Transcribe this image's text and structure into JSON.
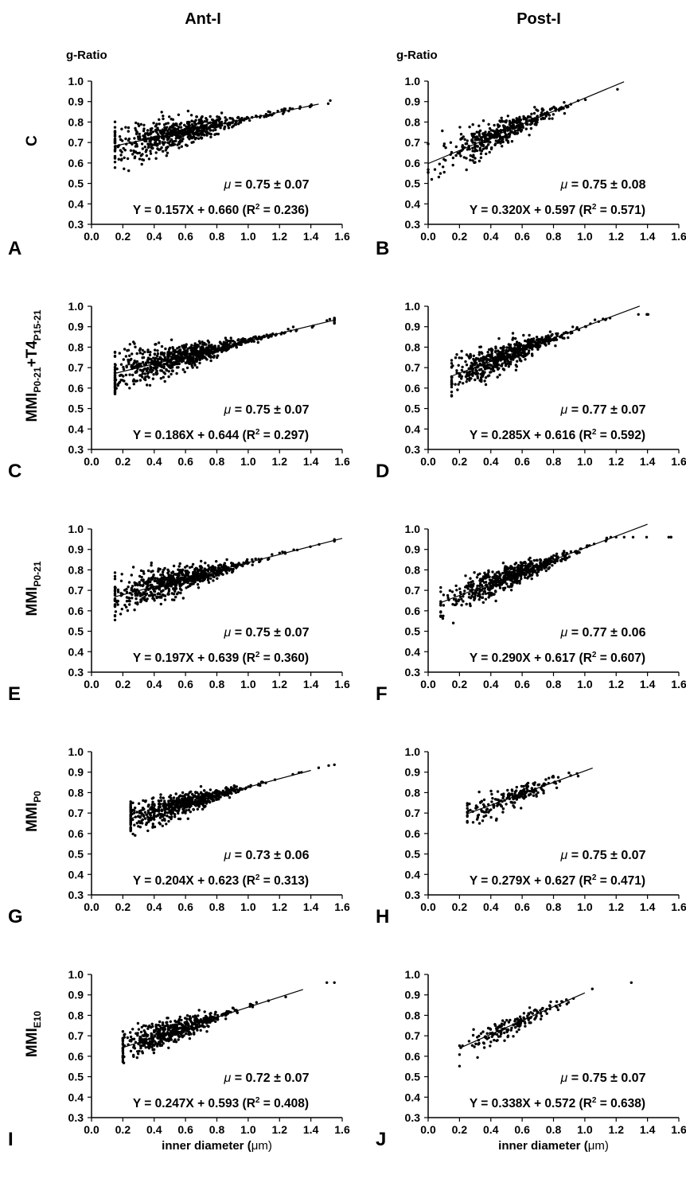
{
  "columns": [
    "Ant-I",
    "Post-I"
  ],
  "ylabel_top": "g-Ratio",
  "xlabel_prefix": "inner  diameter (",
  "xlabel_unit": "μm",
  "xlabel_suffix": ")",
  "x_ticks": [
    "0.0",
    "0.2",
    "0.4",
    "0.6",
    "0.8",
    "1.0",
    "1.2",
    "1.4",
    "1.6"
  ],
  "y_ticks": [
    "0.3",
    "0.4",
    "0.5",
    "0.6",
    "0.7",
    "0.8",
    "0.9",
    "1.0"
  ],
  "rows": [
    {
      "label_main": "C",
      "label_sub": "",
      "label_tail": ""
    },
    {
      "label_main": "MMI",
      "label_sub": "P0-21",
      "label_tail": "+T4",
      "label_tail_sub": "P15-21"
    },
    {
      "label_main": "MMI",
      "label_sub": "P0-21",
      "label_tail": ""
    },
    {
      "label_main": "MMI",
      "label_sub": "P0",
      "label_tail": ""
    },
    {
      "label_main": "MMI",
      "label_sub": "E10",
      "label_tail": ""
    }
  ],
  "chart_data": [
    {
      "type": "scatter",
      "panel": "A",
      "column": "Ant-I",
      "row": "C",
      "xlim": [
        0,
        1.6
      ],
      "ylim": [
        0.3,
        1.0
      ],
      "fit": {
        "slope": 0.157,
        "intercept": 0.66,
        "x_range": [
          0.15,
          1.45
        ]
      },
      "mean_text": "= 0.75 ± 0.07",
      "mu": "μ",
      "equation": "Y = 0.157X + 0.660 (R",
      "r2_text": " = 0.236)",
      "x_center": 0.55,
      "x_spread": 0.22,
      "n": 650,
      "scatter_sd": 0.065,
      "seed": 11
    },
    {
      "type": "scatter",
      "panel": "B",
      "column": "Post-I",
      "row": "C",
      "xlim": [
        0,
        1.6
      ],
      "ylim": [
        0.3,
        1.0
      ],
      "fit": {
        "slope": 0.32,
        "intercept": 0.597,
        "x_range": [
          0.0,
          1.25
        ]
      },
      "mean_text": "= 0.75 ± 0.08",
      "mu": "μ",
      "equation": "Y = 0.320X + 0.597 (R",
      "r2_text": " = 0.571)",
      "x_center": 0.45,
      "x_spread": 0.18,
      "n": 420,
      "scatter_sd": 0.05,
      "seed": 23
    },
    {
      "type": "scatter",
      "panel": "C",
      "column": "Ant-I",
      "row": "MMI P0-21 + T4 P15-21",
      "xlim": [
        0,
        1.6
      ],
      "ylim": [
        0.3,
        1.0
      ],
      "fit": {
        "slope": 0.186,
        "intercept": 0.644,
        "x_range": [
          0.15,
          1.55
        ]
      },
      "mean_text": "= 0.75 ± 0.07",
      "mu": "μ",
      "equation": "Y = 0.186X + 0.644 (R",
      "r2_text": " = 0.297)",
      "x_center": 0.55,
      "x_spread": 0.25,
      "n": 800,
      "scatter_sd": 0.06,
      "seed": 37
    },
    {
      "type": "scatter",
      "panel": "D",
      "column": "Post-I",
      "row": "MMI P0-21 + T4 P15-21",
      "xlim": [
        0,
        1.6
      ],
      "ylim": [
        0.3,
        1.0
      ],
      "fit": {
        "slope": 0.285,
        "intercept": 0.616,
        "x_range": [
          0.15,
          1.35
        ]
      },
      "mean_text": "= 0.77 ± 0.07",
      "mu": "μ",
      "equation": "Y = 0.285X + 0.616 (R",
      "r2_text": " = 0.592)",
      "x_center": 0.48,
      "x_spread": 0.18,
      "n": 620,
      "scatter_sd": 0.05,
      "seed": 41
    },
    {
      "type": "scatter",
      "panel": "E",
      "column": "Ant-I",
      "row": "MMI P0-21",
      "xlim": [
        0,
        1.6
      ],
      "ylim": [
        0.3,
        1.0
      ],
      "fit": {
        "slope": 0.197,
        "intercept": 0.639,
        "x_range": [
          0.15,
          1.6
        ]
      },
      "mean_text": "= 0.75 ± 0.07",
      "mu": "μ",
      "equation": "Y = 0.197X + 0.639 (R",
      "r2_text": " = 0.360)",
      "x_center": 0.55,
      "x_spread": 0.22,
      "n": 700,
      "scatter_sd": 0.06,
      "seed": 53
    },
    {
      "type": "scatter",
      "panel": "F",
      "column": "Post-I",
      "row": "MMI P0-21",
      "xlim": [
        0,
        1.6
      ],
      "ylim": [
        0.3,
        1.0
      ],
      "fit": {
        "slope": 0.29,
        "intercept": 0.617,
        "x_range": [
          0.08,
          1.4
        ]
      },
      "mean_text": "= 0.77 ± 0.06",
      "mu": "μ",
      "equation": "Y = 0.290X + 0.617 (R",
      "r2_text": " = 0.607)",
      "x_center": 0.5,
      "x_spread": 0.18,
      "n": 600,
      "scatter_sd": 0.045,
      "seed": 67
    },
    {
      "type": "scatter",
      "panel": "G",
      "column": "Ant-I",
      "row": "MMI P0",
      "xlim": [
        0,
        1.6
      ],
      "ylim": [
        0.3,
        1.0
      ],
      "fit": {
        "slope": 0.204,
        "intercept": 0.623,
        "x_range": [
          0.25,
          1.4
        ]
      },
      "mean_text": "= 0.73 ± 0.06",
      "mu": "μ",
      "equation": "Y = 0.204X + 0.623 (R",
      "r2_text": " = 0.313)",
      "x_center": 0.55,
      "x_spread": 0.2,
      "n": 620,
      "scatter_sd": 0.05,
      "seed": 79
    },
    {
      "type": "scatter",
      "panel": "H",
      "column": "Post-I",
      "row": "MMI P0",
      "xlim": [
        0,
        1.6
      ],
      "ylim": [
        0.3,
        1.0
      ],
      "fit": {
        "slope": 0.279,
        "intercept": 0.627,
        "x_range": [
          0.25,
          1.05
        ]
      },
      "mean_text": "= 0.75 ± 0.07",
      "mu": "μ",
      "equation": "Y = 0.279X + 0.627 (R",
      "r2_text": " = 0.471)",
      "x_center": 0.52,
      "x_spread": 0.15,
      "n": 200,
      "scatter_sd": 0.045,
      "seed": 83
    },
    {
      "type": "scatter",
      "panel": "I",
      "column": "Ant-I",
      "row": "MMI E10",
      "xlim": [
        0,
        1.6
      ],
      "ylim": [
        0.3,
        1.0
      ],
      "fit": {
        "slope": 0.247,
        "intercept": 0.593,
        "x_range": [
          0.2,
          1.35
        ]
      },
      "mean_text": "= 0.72 ± 0.07",
      "mu": "μ",
      "equation": "Y = 0.247X + 0.593 (R",
      "r2_text": " = 0.408)",
      "x_center": 0.5,
      "x_spread": 0.18,
      "n": 520,
      "scatter_sd": 0.05,
      "seed": 97
    },
    {
      "type": "scatter",
      "panel": "J",
      "column": "Post-I",
      "row": "MMI E10",
      "xlim": [
        0,
        1.6
      ],
      "ylim": [
        0.3,
        1.0
      ],
      "fit": {
        "slope": 0.338,
        "intercept": 0.572,
        "x_range": [
          0.2,
          1.0
        ]
      },
      "mean_text": "= 0.75 ± 0.07",
      "mu": "μ",
      "equation": "Y = 0.338X + 0.572 (R",
      "r2_text": " = 0.638)",
      "x_center": 0.52,
      "x_spread": 0.16,
      "n": 170,
      "scatter_sd": 0.04,
      "seed": 101
    }
  ]
}
